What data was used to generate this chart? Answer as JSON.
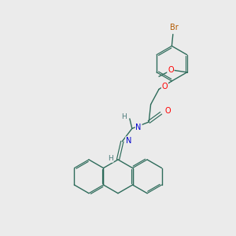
{
  "bg_color": "#ebebeb",
  "bond_color": "#2d6b5a",
  "atom_colors": {
    "O": "#ff0000",
    "N": "#0000cc",
    "Br": "#b35900",
    "H": "#4a7a7a",
    "C": "#2d6b5a"
  },
  "figsize": [
    3.0,
    3.0
  ],
  "dpi": 100
}
